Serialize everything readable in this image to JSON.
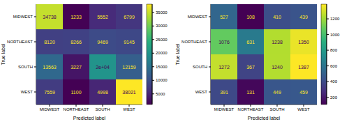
{
  "chart_data": [
    {
      "type": "heatmap",
      "x_label": "Predicted label",
      "y_label": "True label",
      "categories": [
        "MIDWEST",
        "NORTHEAST",
        "SOUTH",
        "WEST"
      ],
      "values": [
        [
          34738,
          1233,
          5552,
          6799
        ],
        [
          8120,
          8266,
          9469,
          9145
        ],
        [
          13563,
          3227,
          20000,
          12159
        ],
        [
          7559,
          1100,
          4998,
          38021
        ]
      ],
      "value_labels": [
        [
          "34738",
          "1233",
          "5552",
          "6799"
        ],
        [
          "8120",
          "8266",
          "9469",
          "9145"
        ],
        [
          "13563",
          "3227",
          "2e+04",
          "12159"
        ],
        [
          "7559",
          "1100",
          "4998",
          "38021"
        ]
      ],
      "data_labels": true,
      "color": "viridis",
      "colorbar": {
        "range": [
          1100,
          38021
        ],
        "ticks": [
          5000,
          10000,
          15000,
          20000,
          25000,
          30000,
          35000
        ]
      }
    },
    {
      "type": "heatmap",
      "x_label": "Predicted label",
      "y_label": "True label",
      "categories": [
        "MIDWEST",
        "NORTHEAST",
        "SOUTH",
        "WEST"
      ],
      "values": [
        [
          527,
          108,
          410,
          439
        ],
        [
          1076,
          631,
          1238,
          1350
        ],
        [
          1272,
          367,
          1240,
          1387
        ],
        [
          391,
          131,
          449,
          459
        ]
      ],
      "value_labels": [
        [
          "527",
          "108",
          "410",
          "439"
        ],
        [
          "1076",
          "631",
          "1238",
          "1350"
        ],
        [
          "1272",
          "367",
          "1240",
          "1387"
        ],
        [
          "391",
          "131",
          "449",
          "459"
        ]
      ],
      "data_labels": true,
      "color": "viridis",
      "colorbar": {
        "range": [
          108,
          1387
        ],
        "ticks": [
          200,
          400,
          600,
          800,
          1000,
          1200
        ]
      }
    }
  ]
}
